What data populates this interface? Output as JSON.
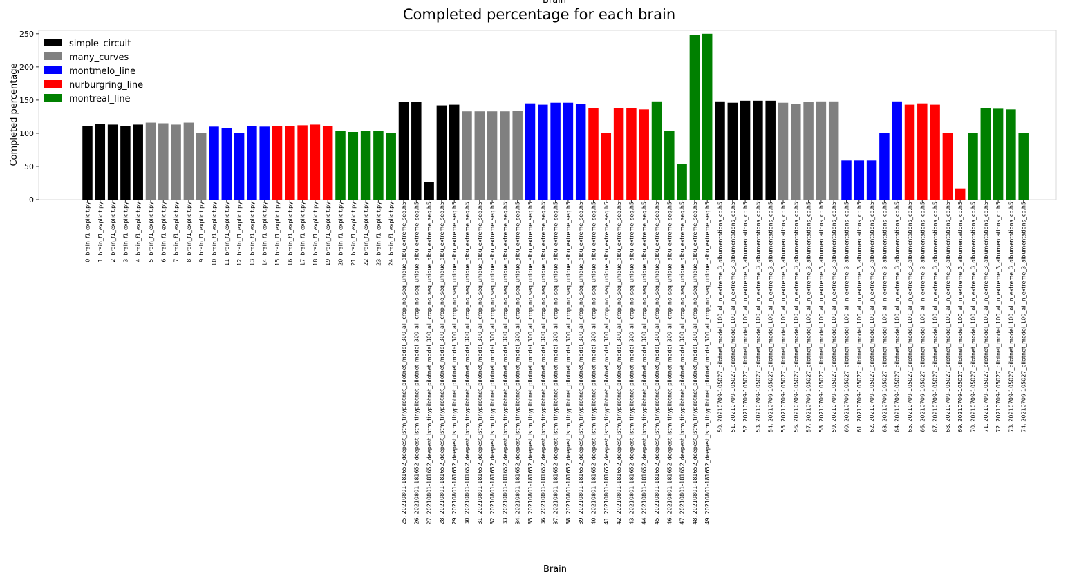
{
  "chart_data": {
    "type": "bar",
    "title": "Completed percentage for each brain",
    "top_label": "Brain",
    "xlabel": "Brain",
    "ylabel": "Completed percentage",
    "ylim": [
      0,
      255
    ],
    "yticks": [
      0,
      50,
      100,
      150,
      200,
      250
    ],
    "grid": false,
    "legend_position": "top-left",
    "legend": [
      {
        "name": "simple_circuit",
        "color": "#000000"
      },
      {
        "name": "many_curves",
        "color": "#808080"
      },
      {
        "name": "montmelo_line",
        "color": "#0000ff"
      },
      {
        "name": "nurburgring_line",
        "color": "#ff0000"
      },
      {
        "name": "montreal_line",
        "color": "#008000"
      }
    ],
    "categories": [
      "0. brain_f1_explicit.py",
      "1. brain_f1_explicit.py",
      "2. brain_f1_explicit.py",
      "3. brain_f1_explicit.py",
      "4. brain_f1_explicit.py",
      "5. brain_f1_explicit.py",
      "6. brain_f1_explicit.py",
      "7. brain_f1_explicit.py",
      "8. brain_f1_explicit.py",
      "9. brain_f1_explicit.py",
      "10. brain_f1_explicit.py",
      "11. brain_f1_explicit.py",
      "12. brain_f1_explicit.py",
      "13. brain_f1_explicit.py",
      "14. brain_f1_explicit.py",
      "15. brain_f1_explicit.py",
      "16. brain_f1_explicit.py",
      "17. brain_f1_explicit.py",
      "18. brain_f1_explicit.py",
      "19. brain_f1_explicit.py",
      "20. brain_f1_explicit.py",
      "21. brain_f1_explicit.py",
      "22. brain_f1_explicit.py",
      "23. brain_f1_explicit.py",
      "24. brain_f1_explicit.py",
      "25. 20210801-181652_deepest_lstm_tinypilotnet_pilotnet_model_300_all_crop_no_seq_unique_albu_extreme_seq.h5",
      "26. 20210801-181652_deepest_lstm_tinypilotnet_pilotnet_model_300_all_crop_no_seq_unique_albu_extreme_seq.h5",
      "27. 20210801-181652_deepest_lstm_tinypilotnet_pilotnet_model_300_all_crop_no_seq_unique_albu_extreme_seq.h5",
      "28. 20210801-181652_deepest_lstm_tinypilotnet_pilotnet_model_300_all_crop_no_seq_unique_albu_extreme_seq.h5",
      "29. 20210801-181652_deepest_lstm_tinypilotnet_pilotnet_model_300_all_crop_no_seq_unique_albu_extreme_seq.h5",
      "30. 20210801-181652_deepest_lstm_tinypilotnet_pilotnet_model_300_all_crop_no_seq_unique_albu_extreme_seq.h5",
      "31. 20210801-181652_deepest_lstm_tinypilotnet_pilotnet_model_300_all_crop_no_seq_unique_albu_extreme_seq.h5",
      "32. 20210801-181652_deepest_lstm_tinypilotnet_pilotnet_model_300_all_crop_no_seq_unique_albu_extreme_seq.h5",
      "33. 20210801-181652_deepest_lstm_tinypilotnet_pilotnet_model_300_all_crop_no_seq_unique_albu_extreme_seq.h5",
      "34. 20210801-181652_deepest_lstm_tinypilotnet_pilotnet_model_300_all_crop_no_seq_unique_albu_extreme_seq.h5",
      "35. 20210801-181652_deepest_lstm_tinypilotnet_pilotnet_model_300_all_crop_no_seq_unique_albu_extreme_seq.h5",
      "36. 20210801-181652_deepest_lstm_tinypilotnet_pilotnet_model_300_all_crop_no_seq_unique_albu_extreme_seq.h5",
      "37. 20210801-181652_deepest_lstm_tinypilotnet_pilotnet_model_300_all_crop_no_seq_unique_albu_extreme_seq.h5",
      "38. 20210801-181652_deepest_lstm_tinypilotnet_pilotnet_model_300_all_crop_no_seq_unique_albu_extreme_seq.h5",
      "39. 20210801-181652_deepest_lstm_tinypilotnet_pilotnet_model_300_all_crop_no_seq_unique_albu_extreme_seq.h5",
      "40. 20210801-181652_deepest_lstm_tinypilotnet_pilotnet_model_300_all_crop_no_seq_unique_albu_extreme_seq.h5",
      "41. 20210801-181652_deepest_lstm_tinypilotnet_pilotnet_model_300_all_crop_no_seq_unique_albu_extreme_seq.h5",
      "42. 20210801-181652_deepest_lstm_tinypilotnet_pilotnet_model_300_all_crop_no_seq_unique_albu_extreme_seq.h5",
      "43. 20210801-181652_deepest_lstm_tinypilotnet_pilotnet_model_300_all_crop_no_seq_unique_albu_extreme_seq.h5",
      "44. 20210801-181652_deepest_lstm_tinypilotnet_pilotnet_model_300_all_crop_no_seq_unique_albu_extreme_seq.h5",
      "45. 20210801-181652_deepest_lstm_tinypilotnet_pilotnet_model_300_all_crop_no_seq_unique_albu_extreme_seq.h5",
      "46. 20210801-181652_deepest_lstm_tinypilotnet_pilotnet_model_300_all_crop_no_seq_unique_albu_extreme_seq.h5",
      "47. 20210801-181652_deepest_lstm_tinypilotnet_pilotnet_model_300_all_crop_no_seq_unique_albu_extreme_seq.h5",
      "48. 20210801-181652_deepest_lstm_tinypilotnet_pilotnet_model_300_all_crop_no_seq_unique_albu_extreme_seq.h5",
      "49. 20210801-181652_deepest_lstm_tinypilotnet_pilotnet_model_300_all_crop_no_seq_unique_albu_extreme_seq.h5",
      "50. 20210709-105027_pilotnet_model_100_all_n_extreme_3_albumentations_cp.h5",
      "51. 20210709-105027_pilotnet_model_100_all_n_extreme_3_albumentations_cp.h5",
      "52. 20210709-105027_pilotnet_model_100_all_n_extreme_3_albumentations_cp.h5",
      "53. 20210709-105027_pilotnet_model_100_all_n_extreme_3_albumentations_cp.h5",
      "54. 20210709-105027_pilotnet_model_100_all_n_extreme_3_albumentations_cp.h5",
      "55. 20210709-105027_pilotnet_model_100_all_n_extreme_3_albumentations_cp.h5",
      "56. 20210709-105027_pilotnet_model_100_all_n_extreme_3_albumentations_cp.h5",
      "57. 20210709-105027_pilotnet_model_100_all_n_extreme_3_albumentations_cp.h5",
      "58. 20210709-105027_pilotnet_model_100_all_n_extreme_3_albumentations_cp.h5",
      "59. 20210709-105027_pilotnet_model_100_all_n_extreme_3_albumentations_cp.h5",
      "60. 20210709-105027_pilotnet_model_100_all_n_extreme_3_albumentations_cp.h5",
      "61. 20210709-105027_pilotnet_model_100_all_n_extreme_3_albumentations_cp.h5",
      "62. 20210709-105027_pilotnet_model_100_all_n_extreme_3_albumentations_cp.h5",
      "63. 20210709-105027_pilotnet_model_100_all_n_extreme_3_albumentations_cp.h5",
      "64. 20210709-105027_pilotnet_model_100_all_n_extreme_3_albumentations_cp.h5",
      "65. 20210709-105027_pilotnet_model_100_all_n_extreme_3_albumentations_cp.h5",
      "66. 20210709-105027_pilotnet_model_100_all_n_extreme_3_albumentations_cp.h5",
      "67. 20210709-105027_pilotnet_model_100_all_n_extreme_3_albumentations_cp.h5",
      "68. 20210709-105027_pilotnet_model_100_all_n_extreme_3_albumentations_cp.h5",
      "69. 20210709-105027_pilotnet_model_100_all_n_extreme_3_albumentations_cp.h5",
      "70. 20210709-105027_pilotnet_model_100_all_n_extreme_3_albumentations_cp.h5",
      "71. 20210709-105027_pilotnet_model_100_all_n_extreme_3_albumentations_cp.h5",
      "72. 20210709-105027_pilotnet_model_100_all_n_extreme_3_albumentations_cp.h5",
      "73. 20210709-105027_pilotnet_model_100_all_n_extreme_3_albumentations_cp.h5",
      "74. 20210709-105027_pilotnet_model_100_all_n_extreme_3_albumentations_cp.h5"
    ],
    "values": [
      111,
      114,
      113,
      111,
      113,
      116,
      115,
      113,
      116,
      100,
      110,
      108,
      100,
      111,
      110,
      111,
      111,
      112,
      113,
      111,
      104,
      102,
      104,
      104,
      100,
      147,
      147,
      27,
      142,
      143,
      133,
      133,
      133,
      133,
      134,
      145,
      143,
      146,
      146,
      144,
      138,
      100,
      138,
      138,
      136,
      148,
      104,
      54,
      248,
      250,
      148,
      146,
      149,
      149,
      149,
      146,
      144,
      147,
      148,
      148,
      59,
      59,
      59,
      100,
      148,
      143,
      145,
      143,
      100,
      17,
      100,
      138,
      137,
      136,
      100
    ],
    "color_groups": [
      "#000000",
      "#808080",
      "#0000ff",
      "#ff0000",
      "#008000"
    ]
  }
}
